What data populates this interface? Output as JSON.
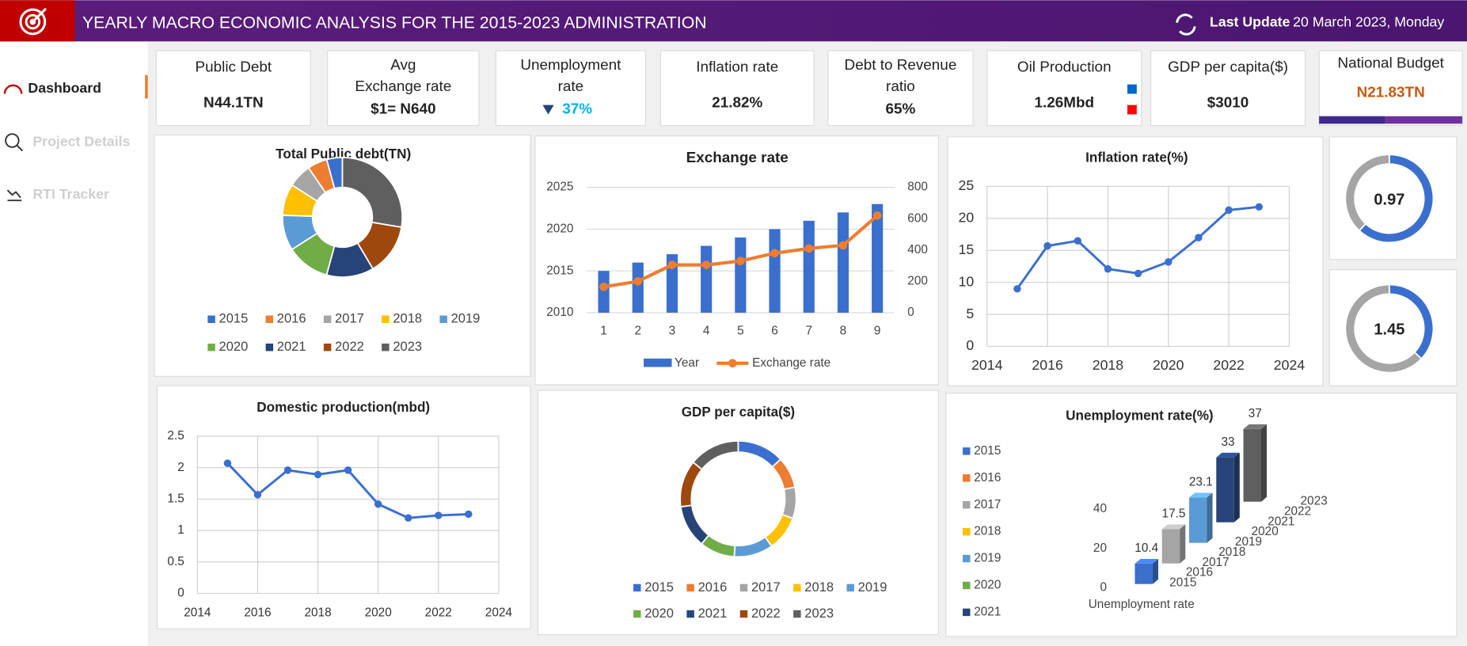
{
  "header": {
    "title": "YEARLY MACRO ECONOMIC ANALYSIS FOR THE 2015-2023 ADMINISTRATION",
    "update_label": "Last Update",
    "update_date": "20 March 2023, Monday"
  },
  "sidebar": {
    "items": [
      "Dashboard",
      "Project Details",
      "RTI Tracker"
    ]
  },
  "kpis": [
    {
      "label": [
        "Public Debt"
      ],
      "value": "N44.1TN"
    },
    {
      "label": [
        "Avg",
        "Exchange rate"
      ],
      "value": "$1= N640"
    },
    {
      "label": [
        "Unemployment",
        "rate"
      ],
      "value": "37%"
    },
    {
      "label": [
        "Inflation rate"
      ],
      "value": "21.82%"
    },
    {
      "label": [
        "Debt to Revenue",
        "ratio"
      ],
      "value": "65%"
    },
    {
      "label": [
        "Oil Production"
      ],
      "value": "1.26Mbd"
    },
    {
      "label": [
        "GDP per capita($)"
      ],
      "value": "$3010"
    },
    {
      "label": [
        "National Budget"
      ],
      "value": "N21.83TN"
    }
  ],
  "chart_data": [
    {
      "type": "donut",
      "title": "Total Public debt(TN)",
      "direction": "counterclockwise",
      "categories": [
        "2015",
        "2016",
        "2017",
        "2018",
        "2019",
        "2020",
        "2021",
        "2022",
        "2023"
      ],
      "values": [
        4,
        5,
        6,
        8,
        9,
        11,
        12,
        13,
        26
      ],
      "colors": [
        "#3a6fce",
        "#ed7d31",
        "#a5a5a5",
        "#ffc000",
        "#5b9bd5",
        "#70ad47",
        "#264478",
        "#9e480e",
        "#5f5f5f"
      ]
    },
    {
      "type": "combo",
      "title": "Exchange rate",
      "categories": [
        1,
        2,
        3,
        4,
        5,
        6,
        7,
        8,
        9
      ],
      "ylim": [
        2010,
        2025
      ],
      "yticks": [
        2010,
        2015,
        2020,
        2025
      ],
      "y2lim": [
        0,
        800
      ],
      "y2ticks": [
        0,
        200,
        400,
        600,
        800
      ],
      "grid": true,
      "series": [
        {
          "name": "Year",
          "type": "bar",
          "color": "#3a6fce",
          "values": [
            2015,
            2016,
            2017,
            2018,
            2019,
            2020,
            2021,
            2022,
            2023
          ]
        },
        {
          "name": "Exchange rate",
          "type": "line",
          "axis": "y2",
          "color": "#ed7d31",
          "values": [
            165,
            200,
            305,
            305,
            330,
            380,
            410,
            430,
            620
          ]
        }
      ]
    },
    {
      "type": "line",
      "title": "Inflation rate(%)",
      "color": "#3a6fce",
      "x": [
        2015,
        2016,
        2017,
        2018,
        2019,
        2020,
        2021,
        2022,
        2023
      ],
      "values": [
        9.0,
        15.7,
        16.5,
        12.1,
        11.4,
        13.2,
        17.0,
        21.3,
        21.8
      ],
      "xlim": [
        2014,
        2024
      ],
      "xticks": [
        2014,
        2016,
        2018,
        2020,
        2022,
        2024
      ],
      "ylim": [
        0,
        25
      ],
      "yticks": [
        0,
        5,
        10,
        15,
        20,
        25
      ],
      "grid": true
    },
    {
      "type": "gauge",
      "center_label": "0.97",
      "values": [
        62,
        38
      ],
      "colors": [
        "#3a6fce",
        "#a5a5a5"
      ]
    },
    {
      "type": "gauge",
      "center_label": "1.45",
      "values": [
        37,
        63
      ],
      "colors": [
        "#3a6fce",
        "#a5a5a5"
      ]
    },
    {
      "type": "line",
      "title": "Domestic production(mbd)",
      "color": "#3a6fce",
      "x": [
        2015,
        2016,
        2017,
        2018,
        2019,
        2020,
        2021,
        2022,
        2023
      ],
      "values": [
        2.07,
        1.57,
        1.96,
        1.89,
        1.96,
        1.42,
        1.2,
        1.24,
        1.26
      ],
      "xlim": [
        2014,
        2024
      ],
      "xticks": [
        2014,
        2016,
        2018,
        2020,
        2022,
        2024
      ],
      "ylim": [
        0,
        2.5
      ],
      "yticks": [
        0,
        0.5,
        1,
        1.5,
        2,
        2.5
      ],
      "grid": true
    },
    {
      "type": "donut",
      "title": "GDP per capita($)",
      "direction": "clockwise",
      "categories": [
        "2015",
        "2016",
        "2017",
        "2018",
        "2019",
        "2020",
        "2021",
        "2022",
        "2023"
      ],
      "values": [
        12,
        8,
        8,
        9,
        10,
        9,
        11,
        12,
        13
      ],
      "colors": [
        "#3a6fce",
        "#ed7d31",
        "#a5a5a5",
        "#ffc000",
        "#5b9bd5",
        "#70ad47",
        "#264478",
        "#9e480e",
        "#5f5f5f"
      ]
    },
    {
      "type": "bar3d",
      "title": "Unemployment rate(%)",
      "xlabel": "Unemployment rate",
      "ylim": [
        0,
        40
      ],
      "yticks": [
        0,
        20,
        40
      ],
      "series": [
        {
          "name": "2015",
          "color": "#3a6fce",
          "values": [
            10.4
          ]
        },
        {
          "name": "2016",
          "color": "#ed7d31",
          "values": [
            null
          ]
        },
        {
          "name": "2017",
          "color": "#a5a5a5",
          "values": [
            17.5
          ]
        },
        {
          "name": "2018",
          "color": "#ffc000",
          "values": [
            null
          ]
        },
        {
          "name": "2019",
          "color": "#5b9bd5",
          "values": [
            23.1
          ]
        },
        {
          "name": "2020",
          "color": "#70ad47",
          "values": [
            null
          ]
        },
        {
          "name": "2021",
          "color": "#264478",
          "values": [
            33
          ]
        },
        {
          "name": "2022",
          "color": "#9e480e",
          "values": [
            null
          ]
        },
        {
          "name": "2023",
          "color": "#5f5f5f",
          "values": [
            37
          ]
        }
      ]
    }
  ]
}
